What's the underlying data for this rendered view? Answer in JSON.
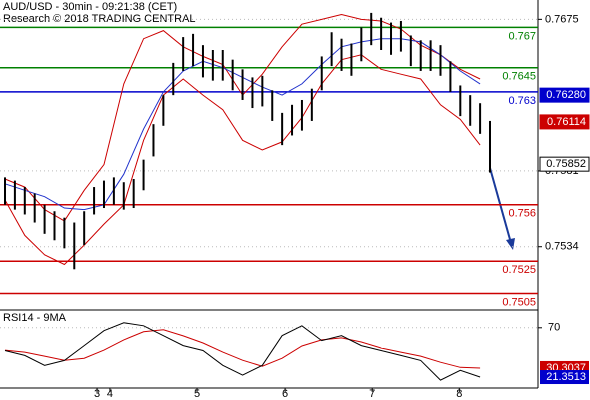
{
  "chart_data": {
    "type": "candlestick",
    "title": "AUD/USD - 30min - 09:21:38 (CET)",
    "subtitle": "Research © 2018 TRADING CENTRAL",
    "xlim": [
      0,
      49
    ],
    "xticks": [
      {
        "value": 9.3,
        "label": "3"
      },
      {
        "value": 10.6,
        "label": "4"
      },
      {
        "value": 19.4,
        "label": "5"
      },
      {
        "value": 28.3,
        "label": "6"
      },
      {
        "value": 37.1,
        "label": "7"
      },
      {
        "value": 45.9,
        "label": "8"
      }
    ],
    "ylim": [
      0.7496,
      0.7687
    ],
    "yticks": [
      0.7675,
      0.7581,
      0.7534
    ],
    "grid": true,
    "color": "#000000",
    "high": [
      0.7577,
      0.7575,
      0.7571,
      0.7567,
      0.756,
      0.7556,
      0.7552,
      0.7549,
      0.7556,
      0.7571,
      0.7575,
      0.7577,
      0.7574,
      0.7576,
      0.7588,
      0.761,
      0.7628,
      0.7648,
      0.7664,
      0.7666,
      0.7659,
      0.7656,
      0.7656,
      0.765,
      0.7644,
      0.7639,
      0.764,
      0.7631,
      0.7617,
      0.7622,
      0.7625,
      0.7632,
      0.7652,
      0.7667,
      0.7663,
      0.766,
      0.767,
      0.7679,
      0.7676,
      0.7673,
      0.7674,
      0.7665,
      0.7662,
      0.7662,
      0.7659,
      0.7649,
      0.7634,
      0.7628,
      0.7623,
      0.7612
    ],
    "low": [
      0.756,
      0.7557,
      0.7554,
      0.7549,
      0.7542,
      0.7538,
      0.7533,
      0.752,
      0.7535,
      0.7554,
      0.7558,
      0.756,
      0.7557,
      0.7558,
      0.7569,
      0.759,
      0.7609,
      0.7628,
      0.7643,
      0.7646,
      0.7639,
      0.7637,
      0.7637,
      0.7631,
      0.7625,
      0.762,
      0.7621,
      0.7612,
      0.7597,
      0.7603,
      0.7606,
      0.7612,
      0.7631,
      0.7646,
      0.7643,
      0.764,
      0.7649,
      0.7659,
      0.7656,
      0.7653,
      0.7655,
      0.7646,
      0.7643,
      0.7643,
      0.764,
      0.763,
      0.7615,
      0.7609,
      0.7604,
      0.758
    ],
    "overlay_x": [
      0,
      2,
      4,
      6,
      8,
      10,
      12,
      14,
      16,
      18,
      20,
      22,
      24,
      26,
      28,
      30,
      32,
      34,
      36,
      38,
      40,
      42,
      44,
      46,
      48
    ],
    "overlays": [
      {
        "color": "#cc0000",
        "values": [
          0.7576,
          0.7571,
          0.7557,
          0.755,
          0.7569,
          0.7585,
          0.7635,
          0.7663,
          0.7668,
          0.7658,
          0.7652,
          0.7647,
          0.7628,
          0.7641,
          0.7658,
          0.7672,
          0.7675,
          0.7678,
          0.7675,
          0.7674,
          0.7669,
          0.7659,
          0.7653,
          0.7644,
          0.7638
        ]
      },
      {
        "color": "#cc0000",
        "values": [
          0.7563,
          0.7541,
          0.7529,
          0.7523,
          0.7535,
          0.7548,
          0.756,
          0.76,
          0.7628,
          0.7638,
          0.7628,
          0.7619,
          0.76,
          0.7594,
          0.7599,
          0.7614,
          0.7635,
          0.765,
          0.7653,
          0.7644,
          0.7641,
          0.7638,
          0.7622,
          0.7613,
          0.7597
        ]
      },
      {
        "color": "#2233cc",
        "values": [
          0.7573,
          0.7569,
          0.7565,
          0.7558,
          0.7557,
          0.756,
          0.7579,
          0.7607,
          0.763,
          0.7643,
          0.7649,
          0.7645,
          0.7639,
          0.7633,
          0.7628,
          0.7635,
          0.7647,
          0.7658,
          0.7661,
          0.7663,
          0.7663,
          0.7661,
          0.7653,
          0.7643,
          0.7635
        ]
      }
    ],
    "levels": [
      {
        "value": 0.767,
        "label": "0.767",
        "color": "#008000"
      },
      {
        "value": 0.7645,
        "label": "0.7645",
        "color": "#008000"
      },
      {
        "value": 0.763,
        "label": "0.763",
        "color": "#0000cc"
      },
      {
        "value": 0.756,
        "label": "0.756",
        "color": "#cc0000"
      },
      {
        "value": 0.7525,
        "label": "0.7525",
        "color": "#cc0000"
      },
      {
        "value": 0.7505,
        "label": "0.7505",
        "color": "#cc0000"
      }
    ],
    "price_tags": [
      {
        "value": 0.7628,
        "label": "0.76280",
        "color": "#0000cc"
      },
      {
        "value": 0.76114,
        "label": "0.76114",
        "color": "#cc0000"
      },
      {
        "value": 0.75852,
        "label": "0.75852",
        "color": "#ffffff"
      }
    ],
    "indicator": {
      "title": "RSI14 - 9MA",
      "ylim": [
        10.5,
        86.6
      ],
      "yticks": [
        70
      ],
      "series": [
        {
          "color": "#000000",
          "values": [
            47.6,
            42.7,
            32.9,
            37.8,
            52.4,
            67.1,
            74.9,
            72.0,
            62.2,
            52.4,
            47.6,
            32.9,
            23.2,
            32.9,
            62.2,
            72.0,
            57.3,
            62.2,
            52.4,
            47.6,
            42.7,
            37.8,
            18.3,
            28.0,
            21.3513
          ]
        },
        {
          "color": "#cc0000",
          "values": [
            48,
            46,
            42,
            38,
            40,
            48,
            58,
            66,
            68,
            62,
            55,
            46,
            38,
            32,
            40,
            52,
            58,
            60,
            56,
            50,
            46,
            42,
            36,
            31,
            30.3037
          ]
        }
      ],
      "tags": [
        {
          "value": 30.3037,
          "label": "30.3037",
          "color": "#cc0000"
        },
        {
          "value": 21.3513,
          "label": "21.3513",
          "color": "#0000cc"
        }
      ]
    }
  }
}
